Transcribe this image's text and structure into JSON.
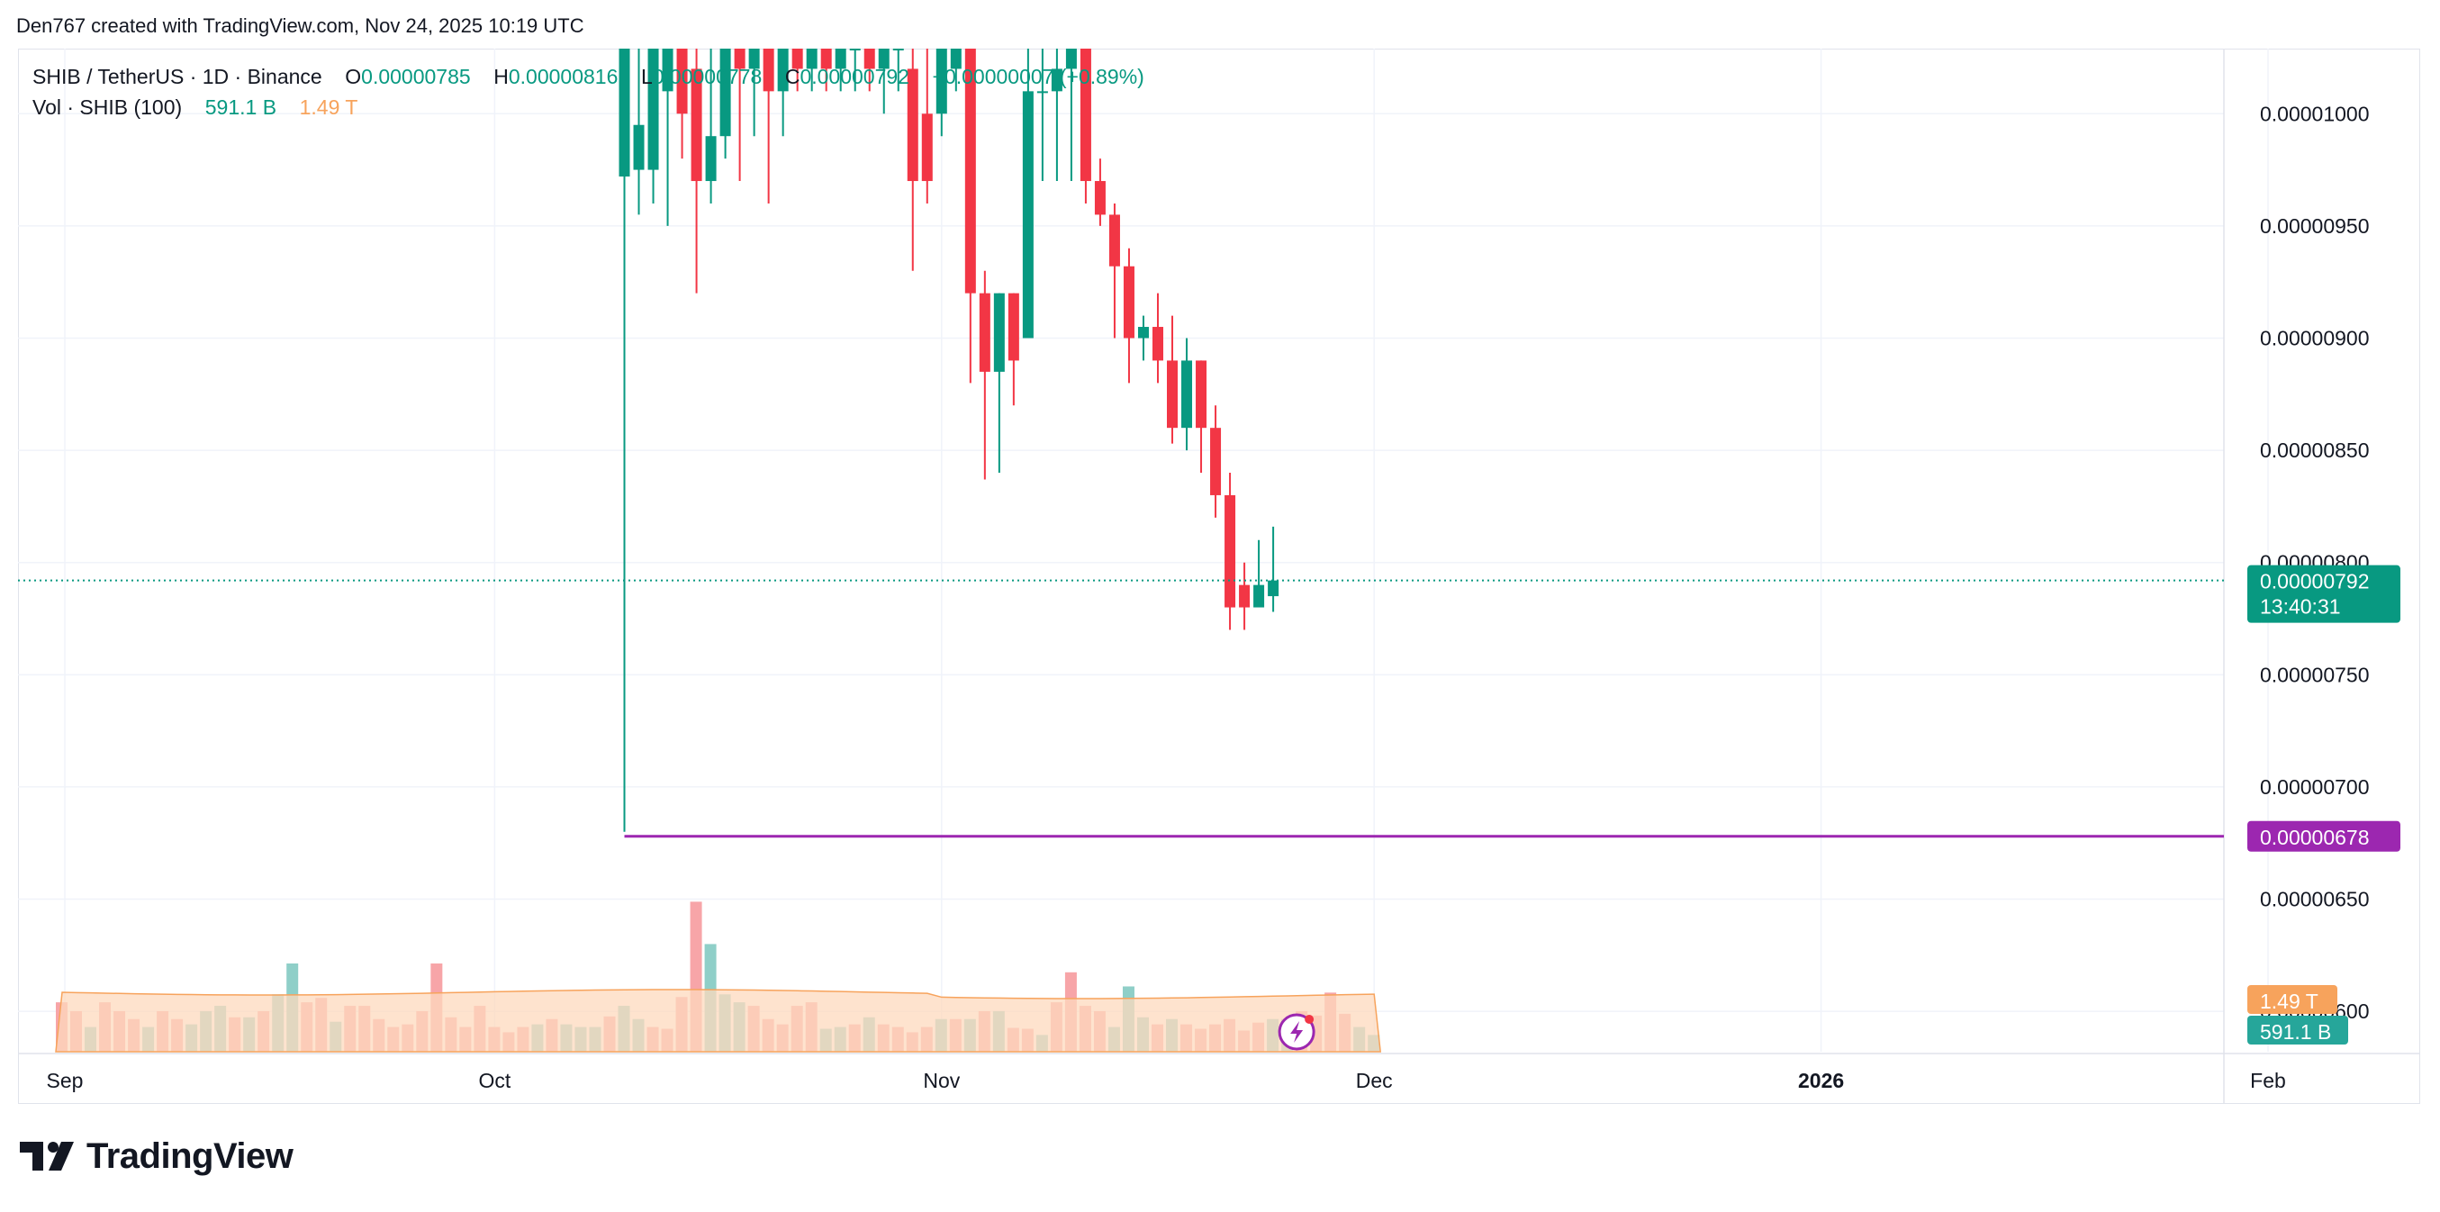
{
  "attribution": "Den767 created with TradingView.com, Nov 24, 2025 10:19 UTC",
  "legend": {
    "symbol": "SHIB / TetherUS · 1D · Binance",
    "o_label": "O",
    "o_value": "0.00000785",
    "h_label": "H",
    "h_value": "0.00000816",
    "l_label": "L",
    "l_value": "0.00000778",
    "c_label": "C",
    "c_value": "0.00000792",
    "change": "+0.00000007 (+0.89%)",
    "vol_label": "Vol · SHIB (100)",
    "vol_value": "591.1 B",
    "vol_ma": "1.49 T"
  },
  "brand": "TradingView",
  "colors": {
    "up": "#089981",
    "down": "#f23645",
    "vol_up": "#8fcfc8",
    "vol_down": "#f7a5a8",
    "vol_ma_fill": "#fdd9bd",
    "vol_ma_line": "#f7a35c",
    "level": "#9c27b0",
    "grid": "#f0f3fa",
    "text": "#131722"
  },
  "chart_data": {
    "type": "candlestick",
    "x_labels": [
      "Sep",
      "Oct",
      "Nov",
      "Dec",
      "2026",
      "Feb"
    ],
    "y_ticks": [
      "0.00001000",
      "0.00000950",
      "0.00000900",
      "0.00000850",
      "0.00000800",
      "0.00000750",
      "0.00000700",
      "0.00000650",
      "0.00000600"
    ],
    "y_tick_values": [
      1e-05,
      9.5e-06,
      9e-06,
      8.5e-06,
      8e-06,
      7.5e-06,
      7e-06,
      6.5e-06,
      6e-06
    ],
    "ylim": [
      5.82e-06,
      1.029e-05
    ],
    "last_price": "0.00000792",
    "countdown": "13:40:31",
    "horizontal_level": "0.00000678",
    "horizontal_level_value": 6.78e-06,
    "volume_ma_tag": "1.49 T",
    "volume_tag": "591.1 B",
    "candles": [
      {
        "date": "2025-10-09",
        "o": 9.72e-06,
        "h": 1.05e-05,
        "l": 6.8e-06,
        "c": 1.045e-05
      },
      {
        "date": "2025-10-10",
        "o": 9.75e-06,
        "h": 1.05e-05,
        "l": 9.55e-06,
        "c": 9.95e-06
      },
      {
        "date": "2025-10-11",
        "o": 9.75e-06,
        "h": 1.05e-05,
        "l": 9.6e-06,
        "c": 1.03e-05
      },
      {
        "date": "2025-10-12",
        "o": 1.01e-05,
        "h": 1.05e-05,
        "l": 9.5e-06,
        "c": 1.04e-05
      },
      {
        "date": "2025-10-13",
        "o": 1.04e-05,
        "h": 1.05e-05,
        "l": 9.8e-06,
        "c": 1e-05
      },
      {
        "date": "2025-10-14",
        "o": 1.02e-05,
        "h": 1.05e-05,
        "l": 9.2e-06,
        "c": 9.7e-06
      },
      {
        "date": "2025-10-15",
        "o": 9.7e-06,
        "h": 1.05e-05,
        "l": 9.6e-06,
        "c": 9.9e-06
      },
      {
        "date": "2025-10-16",
        "o": 9.9e-06,
        "h": 1.05e-05,
        "l": 9.8e-06,
        "c": 1.04e-05
      },
      {
        "date": "2025-10-17",
        "o": 1.04e-05,
        "h": 1.05e-05,
        "l": 9.7e-06,
        "c": 1.02e-05
      },
      {
        "date": "2025-10-18",
        "o": 1.02e-05,
        "h": 1.05e-05,
        "l": 9.9e-06,
        "c": 1.03e-05
      },
      {
        "date": "2025-10-19",
        "o": 1.03e-05,
        "h": 1.05e-05,
        "l": 9.6e-06,
        "c": 1.01e-05
      },
      {
        "date": "2025-10-20",
        "o": 1.01e-05,
        "h": 1.05e-05,
        "l": 9.9e-06,
        "c": 1.04e-05
      },
      {
        "date": "2025-10-21",
        "o": 1.04e-05,
        "h": 1.05e-05,
        "l": 1.01e-05,
        "c": 1.02e-05
      },
      {
        "date": "2025-10-22",
        "o": 1.02e-05,
        "h": 1.05e-05,
        "l": 1.01e-05,
        "c": 1.03e-05
      },
      {
        "date": "2025-10-23",
        "o": 1.03e-05,
        "h": 1.05e-05,
        "l": 1.01e-05,
        "c": 1.02e-05
      },
      {
        "date": "2025-10-24",
        "o": 1.02e-05,
        "h": 1.05e-05,
        "l": 1.01e-05,
        "c": 1.03e-05
      },
      {
        "date": "2025-10-25",
        "o": 1.03e-05,
        "h": 1.05e-05,
        "l": 1.01e-05,
        "c": 1.04e-05
      },
      {
        "date": "2025-10-26",
        "o": 1.04e-05,
        "h": 1.05e-05,
        "l": 1.01e-05,
        "c": 1.02e-05
      },
      {
        "date": "2025-10-27",
        "o": 1.02e-05,
        "h": 1.05e-05,
        "l": 1e-05,
        "c": 1.03e-05
      },
      {
        "date": "2025-10-28",
        "o": 1.03e-05,
        "h": 1.05e-05,
        "l": 1.01e-05,
        "c": 1.04e-05
      },
      {
        "date": "2025-10-29",
        "o": 1.02e-05,
        "h": 1.05e-05,
        "l": 9.3e-06,
        "c": 9.7e-06
      },
      {
        "date": "2025-10-30",
        "o": 1e-05,
        "h": 1.05e-05,
        "l": 9.6e-06,
        "c": 9.7e-06
      },
      {
        "date": "2025-10-31",
        "o": 1e-05,
        "h": 1.05e-05,
        "l": 9.9e-06,
        "c": 1.03e-05
      },
      {
        "date": "2025-11-01",
        "o": 1.02e-05,
        "h": 1.05e-05,
        "l": 1.01e-05,
        "c": 1.04e-05
      },
      {
        "date": "2025-11-02",
        "o": 1.03e-05,
        "h": 1.05e-05,
        "l": 8.8e-06,
        "c": 9.2e-06
      },
      {
        "date": "2025-11-03",
        "o": 9.2e-06,
        "h": 9.3e-06,
        "l": 8.37e-06,
        "c": 8.85e-06
      },
      {
        "date": "2025-11-04",
        "o": 8.85e-06,
        "h": 9.2e-06,
        "l": 8.4e-06,
        "c": 9.2e-06
      },
      {
        "date": "2025-11-05",
        "o": 9.2e-06,
        "h": 9.2e-06,
        "l": 8.7e-06,
        "c": 8.9e-06
      },
      {
        "date": "2025-11-06",
        "o": 9e-06,
        "h": 1.05e-05,
        "l": 9e-06,
        "c": 1.01e-05
      },
      {
        "date": "2025-11-07",
        "o": 1.01e-05,
        "h": 1.03e-05,
        "l": 9.7e-06,
        "c": 1.01e-05
      },
      {
        "date": "2025-11-08",
        "o": 1.01e-05,
        "h": 1.04e-05,
        "l": 9.7e-06,
        "c": 1.02e-05
      },
      {
        "date": "2025-11-09",
        "o": 1.02e-05,
        "h": 1.05e-05,
        "l": 9.7e-06,
        "c": 1.04e-05
      },
      {
        "date": "2025-11-10",
        "o": 1.04e-05,
        "h": 1.05e-05,
        "l": 9.6e-06,
        "c": 9.7e-06
      },
      {
        "date": "2025-11-11",
        "o": 9.7e-06,
        "h": 9.8e-06,
        "l": 9.5e-06,
        "c": 9.55e-06
      },
      {
        "date": "2025-11-12",
        "o": 9.55e-06,
        "h": 9.6e-06,
        "l": 9e-06,
        "c": 9.32e-06
      },
      {
        "date": "2025-11-13",
        "o": 9.32e-06,
        "h": 9.4e-06,
        "l": 8.8e-06,
        "c": 9e-06
      },
      {
        "date": "2025-11-14",
        "o": 9e-06,
        "h": 9.1e-06,
        "l": 8.9e-06,
        "c": 9.05e-06
      },
      {
        "date": "2025-11-15",
        "o": 9.05e-06,
        "h": 9.2e-06,
        "l": 8.8e-06,
        "c": 8.9e-06
      },
      {
        "date": "2025-11-16",
        "o": 8.9e-06,
        "h": 9.1e-06,
        "l": 8.53e-06,
        "c": 8.6e-06
      },
      {
        "date": "2025-11-17",
        "o": 8.6e-06,
        "h": 9e-06,
        "l": 8.5e-06,
        "c": 8.9e-06
      },
      {
        "date": "2025-11-18",
        "o": 8.9e-06,
        "h": 8.9e-06,
        "l": 8.4e-06,
        "c": 8.6e-06
      },
      {
        "date": "2025-11-19",
        "o": 8.6e-06,
        "h": 8.7e-06,
        "l": 8.2e-06,
        "c": 8.3e-06
      },
      {
        "date": "2025-11-20",
        "o": 8.3e-06,
        "h": 8.4e-06,
        "l": 7.7e-06,
        "c": 7.8e-06
      },
      {
        "date": "2025-11-21",
        "o": 7.9e-06,
        "h": 8e-06,
        "l": 7.7e-06,
        "c": 7.8e-06
      },
      {
        "date": "2025-11-22",
        "o": 7.8e-06,
        "h": 8.1e-06,
        "l": 7.8e-06,
        "c": 7.9e-06
      },
      {
        "date": "2025-11-23",
        "o": 7.85e-06,
        "h": 8.16e-06,
        "l": 7.78e-06,
        "c": 7.92e-06
      }
    ],
    "volume": [
      {
        "c": "d",
        "v": 0.56
      },
      {
        "c": "d",
        "v": 0.46
      },
      {
        "c": "u",
        "v": 0.28
      },
      {
        "c": "d",
        "v": 0.56
      },
      {
        "c": "d",
        "v": 0.46
      },
      {
        "c": "d",
        "v": 0.37
      },
      {
        "c": "u",
        "v": 0.28
      },
      {
        "c": "d",
        "v": 0.46
      },
      {
        "c": "d",
        "v": 0.37
      },
      {
        "c": "u",
        "v": 0.31
      },
      {
        "c": "u",
        "v": 0.46
      },
      {
        "c": "u",
        "v": 0.52
      },
      {
        "c": "d",
        "v": 0.39
      },
      {
        "c": "u",
        "v": 0.39
      },
      {
        "c": "d",
        "v": 0.46
      },
      {
        "c": "u",
        "v": 0.65
      },
      {
        "c": "u",
        "v": 1.0
      },
      {
        "c": "d",
        "v": 0.56
      },
      {
        "c": "d",
        "v": 0.61
      },
      {
        "c": "u",
        "v": 0.34
      },
      {
        "c": "d",
        "v": 0.52
      },
      {
        "c": "d",
        "v": 0.52
      },
      {
        "c": "d",
        "v": 0.37
      },
      {
        "c": "d",
        "v": 0.28
      },
      {
        "c": "d",
        "v": 0.31
      },
      {
        "c": "d",
        "v": 0.46
      },
      {
        "c": "d",
        "v": 1.0
      },
      {
        "c": "d",
        "v": 0.39
      },
      {
        "c": "d",
        "v": 0.28
      },
      {
        "c": "d",
        "v": 0.52
      },
      {
        "c": "d",
        "v": 0.28
      },
      {
        "c": "d",
        "v": 0.22
      },
      {
        "c": "d",
        "v": 0.28
      },
      {
        "c": "u",
        "v": 0.31
      },
      {
        "c": "d",
        "v": 0.37
      },
      {
        "c": "u",
        "v": 0.31
      },
      {
        "c": "u",
        "v": 0.28
      },
      {
        "c": "u",
        "v": 0.28
      },
      {
        "c": "d",
        "v": 0.4
      },
      {
        "c": "u",
        "v": 0.52
      },
      {
        "c": "u",
        "v": 0.37
      },
      {
        "c": "d",
        "v": 0.28
      },
      {
        "c": "d",
        "v": 0.26
      },
      {
        "c": "d",
        "v": 0.62
      },
      {
        "c": "d",
        "v": 1.7
      },
      {
        "c": "u",
        "v": 1.22
      },
      {
        "c": "u",
        "v": 0.65
      },
      {
        "c": "u",
        "v": 0.56
      },
      {
        "c": "d",
        "v": 0.52
      },
      {
        "c": "d",
        "v": 0.37
      },
      {
        "c": "d",
        "v": 0.31
      },
      {
        "c": "d",
        "v": 0.52
      },
      {
        "c": "d",
        "v": 0.56
      },
      {
        "c": "u",
        "v": 0.26
      },
      {
        "c": "u",
        "v": 0.28
      },
      {
        "c": "d",
        "v": 0.31
      },
      {
        "c": "u",
        "v": 0.39
      },
      {
        "c": "d",
        "v": 0.31
      },
      {
        "c": "d",
        "v": 0.28
      },
      {
        "c": "d",
        "v": 0.22
      },
      {
        "c": "d",
        "v": 0.28
      },
      {
        "c": "u",
        "v": 0.37
      },
      {
        "c": "d",
        "v": 0.37
      },
      {
        "c": "u",
        "v": 0.37
      },
      {
        "c": "d",
        "v": 0.46
      },
      {
        "c": "u",
        "v": 0.46
      },
      {
        "c": "d",
        "v": 0.27
      },
      {
        "c": "d",
        "v": 0.26
      },
      {
        "c": "u",
        "v": 0.19
      },
      {
        "c": "d",
        "v": 0.56
      },
      {
        "c": "d",
        "v": 0.9
      },
      {
        "c": "d",
        "v": 0.52
      },
      {
        "c": "d",
        "v": 0.46
      },
      {
        "c": "u",
        "v": 0.28
      },
      {
        "c": "u",
        "v": 0.74
      },
      {
        "c": "u",
        "v": 0.39
      },
      {
        "c": "d",
        "v": 0.31
      },
      {
        "c": "u",
        "v": 0.37
      },
      {
        "c": "d",
        "v": 0.31
      },
      {
        "c": "d",
        "v": 0.26
      },
      {
        "c": "d",
        "v": 0.31
      },
      {
        "c": "d",
        "v": 0.37
      },
      {
        "c": "d",
        "v": 0.24
      },
      {
        "c": "d",
        "v": 0.33
      },
      {
        "c": "u",
        "v": 0.37
      },
      {
        "c": "u",
        "v": 0.37
      },
      {
        "c": "d",
        "v": 0.46
      },
      {
        "c": "d",
        "v": 0.41
      },
      {
        "c": "d",
        "v": 0.67
      },
      {
        "c": "d",
        "v": 0.43
      },
      {
        "c": "u",
        "v": 0.28
      },
      {
        "c": "u",
        "v": 0.19
      }
    ],
    "x_label_days": [
      {
        "label": "Sep",
        "day": 0
      },
      {
        "label": "Oct",
        "day": 30
      },
      {
        "label": "Nov",
        "day": 61
      },
      {
        "label": "Dec",
        "day": 91
      },
      {
        "label": "2026",
        "day": 122
      },
      {
        "label": "Feb",
        "day": 153
      }
    ],
    "first_candle_day": 39
  }
}
